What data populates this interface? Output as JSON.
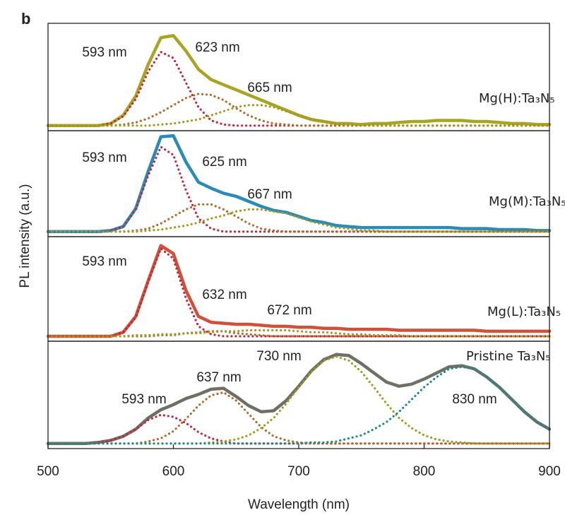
{
  "figure": {
    "panel_label": "b",
    "ylabel": "PL intensity (a.u.)"
  },
  "chart_data": [
    {
      "type": "line",
      "label": "Mg(H):Ta₃N₅",
      "label_color": "#d08a30",
      "xlim": [
        500,
        900
      ],
      "ylim": [
        -0.05,
        1
      ],
      "x": [
        500,
        510,
        520,
        530,
        540,
        550,
        560,
        570,
        580,
        590,
        600,
        610,
        620,
        630,
        640,
        650,
        660,
        670,
        680,
        690,
        700,
        710,
        720,
        730,
        740,
        750,
        760,
        770,
        780,
        790,
        800,
        810,
        820,
        830,
        840,
        850,
        860,
        870,
        880,
        890,
        900
      ],
      "series": [
        {
          "color": "#a8a424",
          "line_style": "solid",
          "values": [
            0,
            0,
            0,
            0,
            0,
            0.02,
            0.1,
            0.29,
            0.6,
            0.86,
            0.88,
            0.73,
            0.55,
            0.45,
            0.4,
            0.35,
            0.3,
            0.25,
            0.2,
            0.15,
            0.1,
            0.06,
            0.04,
            0.02,
            0.02,
            0.01,
            0.02,
            0.02,
            0.03,
            0.04,
            0.04,
            0.05,
            0.05,
            0.05,
            0.04,
            0.04,
            0.03,
            0.02,
            0.02,
            0.01,
            0.01
          ]
        },
        {
          "color": "#c0283a",
          "line_style": "dotted",
          "values": [
            0,
            0,
            0,
            0,
            0,
            0.02,
            0.09,
            0.26,
            0.53,
            0.72,
            0.66,
            0.42,
            0.18,
            0.05,
            0.01,
            0,
            0,
            0,
            0,
            0,
            0,
            0,
            0,
            0,
            0,
            0,
            0,
            0,
            0,
            0,
            0,
            0,
            0,
            0,
            0,
            0,
            0,
            0,
            0,
            0,
            0
          ]
        },
        {
          "color": "#b06a2a",
          "line_style": "dotted",
          "values": [
            0,
            0,
            0,
            0,
            0,
            0,
            0.01,
            0.03,
            0.07,
            0.13,
            0.2,
            0.27,
            0.31,
            0.3,
            0.25,
            0.17,
            0.1,
            0.05,
            0.02,
            0.01,
            0,
            0,
            0,
            0,
            0,
            0,
            0,
            0,
            0,
            0,
            0,
            0,
            0,
            0,
            0,
            0,
            0,
            0,
            0,
            0,
            0
          ]
        },
        {
          "color": "#a09a20",
          "line_style": "dotted",
          "values": [
            0,
            0,
            0,
            0,
            0,
            0,
            0,
            0,
            0,
            0.01,
            0.02,
            0.04,
            0.06,
            0.1,
            0.14,
            0.18,
            0.2,
            0.2,
            0.18,
            0.14,
            0.1,
            0.06,
            0.04,
            0.02,
            0.01,
            0,
            0,
            0,
            0,
            0,
            0,
            0,
            0,
            0,
            0,
            0,
            0,
            0,
            0,
            0,
            0
          ]
        }
      ],
      "annotations": [
        {
          "text": "593 nm",
          "color": "#c0283a"
        },
        {
          "text": "623 nm",
          "color": "#b06a2a"
        },
        {
          "text": "665 nm",
          "color": "#a09a20"
        }
      ]
    },
    {
      "type": "line",
      "label": "Mg(M):Ta₃N₅",
      "label_color": "#2a7ab8",
      "xlim": [
        500,
        900
      ],
      "ylim": [
        -0.05,
        1
      ],
      "x": [
        500,
        510,
        520,
        530,
        540,
        550,
        560,
        570,
        580,
        590,
        600,
        610,
        620,
        630,
        640,
        650,
        660,
        670,
        680,
        690,
        700,
        710,
        720,
        730,
        740,
        750,
        760,
        770,
        780,
        790,
        800,
        810,
        820,
        830,
        840,
        850,
        860,
        870,
        880,
        890,
        900
      ],
      "series": [
        {
          "color": "#2a8ab8",
          "line_style": "solid",
          "values": [
            0,
            0,
            0,
            0,
            0,
            0.01,
            0.05,
            0.23,
            0.6,
            0.94,
            0.95,
            0.69,
            0.49,
            0.43,
            0.38,
            0.35,
            0.3,
            0.25,
            0.21,
            0.19,
            0.15,
            0.11,
            0.09,
            0.06,
            0.05,
            0.04,
            0.04,
            0.04,
            0.04,
            0.04,
            0.04,
            0.04,
            0.04,
            0.03,
            0.03,
            0.03,
            0.02,
            0.02,
            0.02,
            0.01,
            0.01
          ]
        },
        {
          "color": "#c0283a",
          "line_style": "dotted",
          "values": [
            0,
            0,
            0,
            0,
            0,
            0.01,
            0.05,
            0.22,
            0.56,
            0.84,
            0.76,
            0.41,
            0.13,
            0.03,
            0,
            0,
            0,
            0,
            0,
            0,
            0,
            0,
            0,
            0,
            0,
            0,
            0,
            0,
            0,
            0,
            0,
            0,
            0,
            0,
            0,
            0,
            0,
            0,
            0,
            0,
            0
          ]
        },
        {
          "color": "#b06a2a",
          "line_style": "dotted",
          "values": [
            0,
            0,
            0,
            0,
            0,
            0,
            0,
            0.01,
            0.03,
            0.08,
            0.15,
            0.22,
            0.27,
            0.27,
            0.22,
            0.15,
            0.08,
            0.03,
            0.01,
            0,
            0,
            0,
            0,
            0,
            0,
            0,
            0,
            0,
            0,
            0,
            0,
            0,
            0,
            0,
            0,
            0,
            0,
            0,
            0,
            0,
            0
          ]
        },
        {
          "color": "#a09a20",
          "line_style": "dotted",
          "values": [
            0,
            0,
            0,
            0,
            0,
            0,
            0,
            0,
            0.01,
            0.02,
            0.04,
            0.06,
            0.09,
            0.13,
            0.16,
            0.2,
            0.22,
            0.22,
            0.2,
            0.18,
            0.14,
            0.1,
            0.07,
            0.04,
            0.03,
            0.01,
            0.01,
            0,
            0,
            0,
            0,
            0,
            0,
            0,
            0,
            0,
            0,
            0,
            0,
            0,
            0
          ]
        }
      ],
      "annotations": [
        {
          "text": "593 nm",
          "color": "#c0283a"
        },
        {
          "text": "625 nm",
          "color": "#b06a2a"
        },
        {
          "text": "667 nm",
          "color": "#a09a20"
        }
      ]
    },
    {
      "type": "line",
      "label": "Mg(L):Ta₃N₅",
      "label_color": "#c0404a",
      "xlim": [
        500,
        900
      ],
      "ylim": [
        -0.05,
        1
      ],
      "x": [
        500,
        510,
        520,
        530,
        540,
        550,
        560,
        570,
        580,
        590,
        600,
        610,
        620,
        630,
        640,
        650,
        660,
        670,
        680,
        690,
        700,
        710,
        720,
        730,
        740,
        750,
        760,
        770,
        780,
        790,
        800,
        810,
        820,
        830,
        840,
        850,
        860,
        870,
        880,
        890,
        900
      ],
      "series": [
        {
          "color": "#d0503a",
          "line_style": "solid",
          "values": [
            0,
            0,
            0,
            0,
            0,
            0,
            0.04,
            0.2,
            0.56,
            0.91,
            0.83,
            0.46,
            0.2,
            0.14,
            0.13,
            0.12,
            0.12,
            0.11,
            0.1,
            0.1,
            0.09,
            0.09,
            0.08,
            0.08,
            0.07,
            0.07,
            0.07,
            0.07,
            0.06,
            0.06,
            0.06,
            0.06,
            0.06,
            0.06,
            0.06,
            0.05,
            0.05,
            0.05,
            0.05,
            0.05,
            0.05
          ]
        },
        {
          "color": "#c0283a",
          "line_style": "dotted",
          "values": [
            0,
            0,
            0,
            0,
            0,
            0,
            0.04,
            0.19,
            0.55,
            0.88,
            0.78,
            0.38,
            0.1,
            0.02,
            0,
            0,
            0,
            0,
            0,
            0,
            0,
            0,
            0,
            0,
            0,
            0,
            0,
            0,
            0,
            0,
            0,
            0,
            0,
            0,
            0,
            0,
            0,
            0,
            0,
            0,
            0
          ]
        },
        {
          "color": "#b06a2a",
          "line_style": "dotted",
          "values": [
            0,
            0,
            0,
            0,
            0,
            0,
            0,
            0,
            0,
            0.01,
            0.01,
            0.03,
            0.04,
            0.05,
            0.05,
            0.03,
            0.02,
            0.01,
            0,
            0,
            0,
            0,
            0,
            0,
            0,
            0,
            0,
            0,
            0,
            0,
            0,
            0,
            0,
            0,
            0,
            0,
            0,
            0,
            0,
            0,
            0
          ]
        },
        {
          "color": "#a09a20",
          "line_style": "dotted",
          "values": [
            0,
            0,
            0,
            0,
            0,
            0,
            0,
            0.01,
            0.01,
            0.02,
            0.02,
            0.03,
            0.03,
            0.04,
            0.05,
            0.05,
            0.06,
            0.06,
            0.06,
            0.06,
            0.05,
            0.04,
            0.04,
            0.03,
            0.02,
            0.02,
            0.01,
            0.01,
            0.01,
            0,
            0,
            0,
            0,
            0,
            0,
            0,
            0,
            0,
            0,
            0,
            0
          ]
        }
      ],
      "annotations": [
        {
          "text": "593 nm",
          "color": "#c0283a"
        },
        {
          "text": "632 nm",
          "color": "#b06a2a"
        },
        {
          "text": "672 nm",
          "color": "#a09a20"
        }
      ]
    },
    {
      "type": "line",
      "label": "Pristine Ta₃N₅",
      "label_color": "#606060",
      "xlim": [
        500,
        900
      ],
      "ylim": [
        -0.05,
        1
      ],
      "xticks": [
        500,
        600,
        700,
        800,
        900
      ],
      "xlabel": "Wavelength (nm)",
      "x": [
        500,
        510,
        520,
        530,
        540,
        550,
        560,
        570,
        580,
        590,
        600,
        610,
        620,
        630,
        640,
        650,
        660,
        670,
        680,
        690,
        700,
        710,
        720,
        730,
        740,
        750,
        760,
        770,
        780,
        790,
        800,
        810,
        820,
        830,
        840,
        850,
        860,
        870,
        880,
        890,
        900
      ],
      "series": [
        {
          "color": "#6e7068",
          "line_style": "solid",
          "values": [
            0,
            0,
            0,
            0,
            0.01,
            0.03,
            0.07,
            0.14,
            0.25,
            0.33,
            0.38,
            0.44,
            0.48,
            0.53,
            0.54,
            0.46,
            0.37,
            0.31,
            0.32,
            0.42,
            0.56,
            0.71,
            0.82,
            0.87,
            0.86,
            0.78,
            0.69,
            0.6,
            0.56,
            0.58,
            0.63,
            0.69,
            0.75,
            0.76,
            0.73,
            0.65,
            0.55,
            0.43,
            0.31,
            0.21,
            0.14
          ]
        },
        {
          "color": "#c0283a",
          "line_style": "dotted",
          "values": [
            0,
            0,
            0,
            0,
            0.01,
            0.03,
            0.07,
            0.14,
            0.23,
            0.28,
            0.26,
            0.2,
            0.11,
            0.05,
            0.02,
            0,
            0,
            0,
            0,
            0,
            0,
            0,
            0,
            0,
            0,
            0,
            0,
            0,
            0,
            0,
            0,
            0,
            0,
            0,
            0,
            0,
            0,
            0,
            0,
            0,
            0
          ]
        },
        {
          "color": "#b06a2a",
          "line_style": "dotted",
          "values": [
            0,
            0,
            0,
            0,
            0,
            0,
            0,
            0,
            0.02,
            0.05,
            0.12,
            0.24,
            0.37,
            0.47,
            0.5,
            0.42,
            0.29,
            0.16,
            0.07,
            0.03,
            0.01,
            0,
            0,
            0,
            0,
            0,
            0,
            0,
            0,
            0,
            0,
            0,
            0,
            0,
            0,
            0,
            0,
            0,
            0,
            0,
            0
          ]
        },
        {
          "color": "#a09a20",
          "line_style": "dotted",
          "values": [
            0,
            0,
            0,
            0,
            0,
            0,
            0,
            0,
            0,
            0,
            0,
            0,
            0,
            0.01,
            0.02,
            0.04,
            0.08,
            0.15,
            0.25,
            0.39,
            0.55,
            0.7,
            0.81,
            0.85,
            0.81,
            0.7,
            0.55,
            0.39,
            0.25,
            0.15,
            0.08,
            0.04,
            0.02,
            0.01,
            0,
            0,
            0,
            0,
            0,
            0,
            0
          ]
        },
        {
          "color": "#1a8a8a",
          "line_style": "dotted",
          "values": [
            0,
            0,
            0,
            0,
            0,
            0,
            0,
            0,
            0,
            0,
            0,
            0,
            0,
            0,
            0,
            0,
            0,
            0,
            0,
            0,
            0,
            0.01,
            0.01,
            0.02,
            0.05,
            0.08,
            0.14,
            0.21,
            0.31,
            0.43,
            0.55,
            0.65,
            0.73,
            0.75,
            0.73,
            0.65,
            0.55,
            0.43,
            0.31,
            0.21,
            0.14
          ]
        }
      ],
      "annotations": [
        {
          "text": "593 nm",
          "color": "#c0283a"
        },
        {
          "text": "637 nm",
          "color": "#b06a2a"
        },
        {
          "text": "730 nm",
          "color": "#a09a20"
        },
        {
          "text": "830 nm",
          "color": "#1a8a8a"
        }
      ]
    }
  ]
}
